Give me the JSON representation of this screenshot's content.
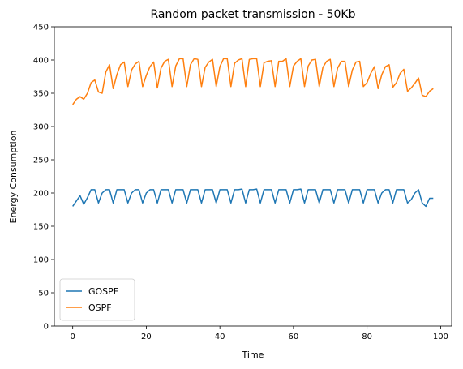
{
  "chart_data": {
    "type": "line",
    "title": "Random packet transmission - 50Kb",
    "xlabel": "Time",
    "ylabel": "Energy Consumption",
    "xlim": [
      -5,
      103
    ],
    "ylim": [
      0,
      450
    ],
    "xticks": [
      0,
      20,
      40,
      60,
      80,
      100
    ],
    "yticks": [
      0,
      50,
      100,
      150,
      200,
      250,
      300,
      350,
      400,
      450
    ],
    "grid": false,
    "legend_position": "lower-left",
    "x": [
      0,
      1,
      2,
      3,
      4,
      5,
      6,
      7,
      8,
      9,
      10,
      11,
      12,
      13,
      14,
      15,
      16,
      17,
      18,
      19,
      20,
      21,
      22,
      23,
      24,
      25,
      26,
      27,
      28,
      29,
      30,
      31,
      32,
      33,
      34,
      35,
      36,
      37,
      38,
      39,
      40,
      41,
      42,
      43,
      44,
      45,
      46,
      47,
      48,
      49,
      50,
      51,
      52,
      53,
      54,
      55,
      56,
      57,
      58,
      59,
      60,
      61,
      62,
      63,
      64,
      65,
      66,
      67,
      68,
      69,
      70,
      71,
      72,
      73,
      74,
      75,
      76,
      77,
      78,
      79,
      80,
      81,
      82,
      83,
      84,
      85,
      86,
      87,
      88,
      89,
      90,
      91,
      92,
      93,
      94,
      95,
      96,
      97,
      98
    ],
    "series": [
      {
        "name": "GOSPF",
        "color": "#1f77b4",
        "values": [
          180,
          188,
          196,
          183,
          193,
          205,
          205,
          185,
          200,
          205,
          205,
          185,
          205,
          205,
          205,
          185,
          200,
          205,
          205,
          185,
          200,
          205,
          205,
          185,
          205,
          205,
          205,
          185,
          205,
          205,
          205,
          185,
          205,
          205,
          205,
          185,
          205,
          205,
          205,
          185,
          205,
          205,
          205,
          185,
          205,
          205,
          206,
          185,
          205,
          205,
          206,
          185,
          205,
          205,
          205,
          185,
          205,
          205,
          205,
          185,
          205,
          205,
          206,
          185,
          205,
          205,
          205,
          185,
          205,
          205,
          205,
          185,
          205,
          205,
          205,
          185,
          205,
          205,
          205,
          185,
          205,
          205,
          205,
          185,
          200,
          205,
          205,
          185,
          205,
          205,
          205,
          185,
          190,
          200,
          205,
          185,
          180,
          192,
          192
        ]
      },
      {
        "name": "OSPF",
        "color": "#ff7f0e",
        "values": [
          333,
          341,
          345,
          341,
          350,
          366,
          370,
          352,
          350,
          382,
          393,
          357,
          378,
          393,
          397,
          360,
          385,
          394,
          398,
          360,
          377,
          390,
          397,
          358,
          388,
          398,
          401,
          360,
          391,
          402,
          402,
          360,
          393,
          402,
          401,
          360,
          389,
          397,
          401,
          360,
          390,
          402,
          402,
          360,
          395,
          400,
          402,
          360,
          401,
          402,
          402,
          360,
          396,
          398,
          399,
          360,
          398,
          398,
          402,
          360,
          391,
          398,
          402,
          360,
          391,
          400,
          401,
          360,
          389,
          398,
          401,
          360,
          388,
          398,
          398,
          360,
          385,
          397,
          398,
          360,
          366,
          380,
          390,
          357,
          378,
          390,
          393,
          359,
          366,
          380,
          386,
          353,
          358,
          365,
          373,
          347,
          345,
          353,
          357
        ]
      }
    ]
  }
}
